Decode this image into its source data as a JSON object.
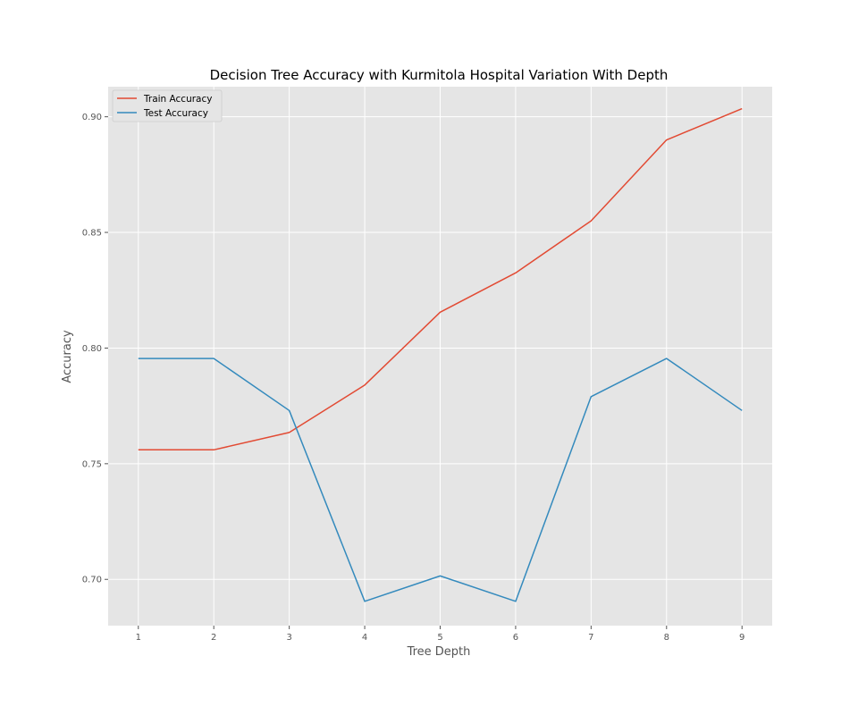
{
  "chart_data": {
    "type": "line",
    "title": "Decision Tree Accuracy with Kurmitola Hospital Variation With Depth",
    "xlabel": "Tree Depth",
    "ylabel": "Accuracy",
    "x": [
      1,
      2,
      3,
      4,
      5,
      6,
      7,
      8,
      9
    ],
    "xticks": [
      "1",
      "2",
      "3",
      "4",
      "5",
      "6",
      "7",
      "8",
      "9"
    ],
    "yticks": [
      "0.70",
      "0.75",
      "0.80",
      "0.85",
      "0.90"
    ],
    "ytick_values": [
      0.7,
      0.75,
      0.8,
      0.85,
      0.9
    ],
    "xlim": [
      0.6,
      9.4
    ],
    "ylim": [
      0.68,
      0.913
    ],
    "grid": true,
    "legend_position": "top-left",
    "plot_background": "#e5e5e5",
    "grid_color": "#ffffff",
    "series": [
      {
        "name": "Train Accuracy",
        "color": "#e24a33",
        "values": [
          0.756,
          0.756,
          0.7635,
          0.784,
          0.8155,
          0.8325,
          0.855,
          0.89,
          0.9035
        ]
      },
      {
        "name": "Test Accuracy",
        "color": "#348abd",
        "values": [
          0.7955,
          0.7955,
          0.773,
          0.6905,
          0.7015,
          0.6905,
          0.779,
          0.7955,
          0.773
        ]
      }
    ]
  }
}
